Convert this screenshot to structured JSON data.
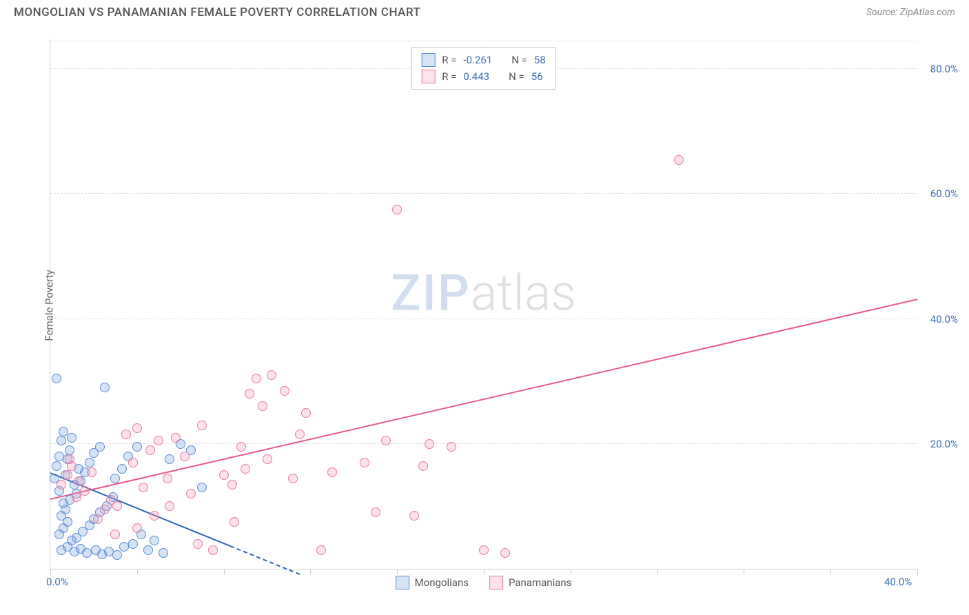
{
  "header": {
    "title": "MONGOLIAN VS PANAMANIAN FEMALE POVERTY CORRELATION CHART",
    "source": "Source: ZipAtlas.com"
  },
  "watermark": {
    "zip": "ZIP",
    "atlas": "atlas"
  },
  "chart": {
    "type": "scatter",
    "ylabel": "Female Poverty",
    "xlim": [
      0,
      40
    ],
    "ylim": [
      0,
      85
    ],
    "background_color": "#ffffff",
    "grid_color": "#dddddd",
    "axis_color": "#d0d0d0",
    "title_color": "#555555",
    "label_color": "#555555",
    "tick_label_color": "#3b6db5",
    "title_fontsize": 17,
    "label_fontsize": 15,
    "tick_fontsize": 15,
    "marker_radius": 7,
    "marker_stroke_width": 1.5,
    "marker_fill_opacity": 0.25,
    "yticks": [
      {
        "v": 20,
        "label": "20.0%"
      },
      {
        "v": 40,
        "label": "40.0%"
      },
      {
        "v": 60,
        "label": "60.0%"
      },
      {
        "v": 80,
        "label": "80.0%"
      }
    ],
    "xticks_major": [
      {
        "v": 0,
        "label": "0.0%"
      },
      {
        "v": 40,
        "label": "40.0%"
      }
    ],
    "xticks_minor": [
      4,
      8,
      12,
      16,
      20,
      24,
      28,
      32,
      36
    ],
    "ygrid": [
      20,
      40,
      60,
      80,
      84.5
    ],
    "series": [
      {
        "name": "Mongolians",
        "color_stroke": "#5b8fd6",
        "color_fill": "rgba(91,143,214,0.25)",
        "r_label": "R =",
        "r_value": "-0.261",
        "n_label": "N =",
        "n_value": "58",
        "trend": {
          "x1": 0,
          "y1": 15.2,
          "x2": 8.3,
          "y2": 3.5,
          "dash_x2": 11.5,
          "dash_y2": -1,
          "color": "#2b64b8"
        },
        "points": [
          [
            0.2,
            14.5
          ],
          [
            0.3,
            16.5
          ],
          [
            0.4,
            18.0
          ],
          [
            0.5,
            20.5
          ],
          [
            0.6,
            22.0
          ],
          [
            0.4,
            12.5
          ],
          [
            0.7,
            15.0
          ],
          [
            0.8,
            17.5
          ],
          [
            0.9,
            19.0
          ],
          [
            1.0,
            21.0
          ],
          [
            0.6,
            10.5
          ],
          [
            1.1,
            13.5
          ],
          [
            1.3,
            16.0
          ],
          [
            0.5,
            8.5
          ],
          [
            0.7,
            9.5
          ],
          [
            0.9,
            11.0
          ],
          [
            1.2,
            12.0
          ],
          [
            0.4,
            5.5
          ],
          [
            0.6,
            6.5
          ],
          [
            0.8,
            7.5
          ],
          [
            1.4,
            14.0
          ],
          [
            1.6,
            15.5
          ],
          [
            1.8,
            17.0
          ],
          [
            2.0,
            18.5
          ],
          [
            2.3,
            19.5
          ],
          [
            0.3,
            30.5
          ],
          [
            1.0,
            4.5
          ],
          [
            1.2,
            5.0
          ],
          [
            1.5,
            6.0
          ],
          [
            1.8,
            7.0
          ],
          [
            2.0,
            8.0
          ],
          [
            2.3,
            9.0
          ],
          [
            2.6,
            10.0
          ],
          [
            2.9,
            11.5
          ],
          [
            0.5,
            3.0
          ],
          [
            0.8,
            3.5
          ],
          [
            1.1,
            2.8
          ],
          [
            1.4,
            3.2
          ],
          [
            1.7,
            2.5
          ],
          [
            2.1,
            3.0
          ],
          [
            2.4,
            2.3
          ],
          [
            2.7,
            2.8
          ],
          [
            3.1,
            2.2
          ],
          [
            3.4,
            3.5
          ],
          [
            3.8,
            4.0
          ],
          [
            4.2,
            5.5
          ],
          [
            2.5,
            29.0
          ],
          [
            4.5,
            3.0
          ],
          [
            4.8,
            4.5
          ],
          [
            3.0,
            14.5
          ],
          [
            3.3,
            16.0
          ],
          [
            3.6,
            18.0
          ],
          [
            4.0,
            19.5
          ],
          [
            5.2,
            2.5
          ],
          [
            7.0,
            13.0
          ],
          [
            5.5,
            17.5
          ],
          [
            6.0,
            20.0
          ],
          [
            6.5,
            19.0
          ]
        ]
      },
      {
        "name": "Panamanians",
        "color_stroke": "#e97ca0",
        "color_fill": "rgba(244,160,190,0.3)",
        "r_label": "R =",
        "r_value": "0.443",
        "n_label": "N =",
        "n_value": "56",
        "trend": {
          "x1": 0,
          "y1": 11.0,
          "x2": 40,
          "y2": 43.0,
          "color": "#e85a8c"
        },
        "points": [
          [
            0.5,
            13.5
          ],
          [
            0.8,
            15.0
          ],
          [
            1.0,
            16.5
          ],
          [
            1.3,
            14.0
          ],
          [
            1.6,
            12.5
          ],
          [
            1.9,
            15.5
          ],
          [
            2.2,
            8.0
          ],
          [
            2.5,
            9.5
          ],
          [
            2.8,
            11.0
          ],
          [
            3.1,
            10.0
          ],
          [
            3.5,
            21.5
          ],
          [
            3.8,
            17.0
          ],
          [
            4.0,
            22.5
          ],
          [
            4.3,
            13.0
          ],
          [
            4.6,
            19.0
          ],
          [
            5.0,
            20.5
          ],
          [
            5.4,
            14.5
          ],
          [
            5.8,
            21.0
          ],
          [
            6.2,
            18.0
          ],
          [
            6.5,
            12.0
          ],
          [
            7.0,
            23.0
          ],
          [
            7.5,
            3.0
          ],
          [
            8.0,
            15.0
          ],
          [
            8.4,
            13.5
          ],
          [
            8.8,
            19.5
          ],
          [
            9.2,
            28.0
          ],
          [
            9.5,
            30.5
          ],
          [
            9.8,
            26.0
          ],
          [
            10.0,
            17.5
          ],
          [
            10.2,
            31.0
          ],
          [
            10.8,
            28.5
          ],
          [
            11.2,
            14.5
          ],
          [
            11.5,
            21.5
          ],
          [
            11.8,
            25.0
          ],
          [
            8.5,
            7.5
          ],
          [
            12.5,
            3.0
          ],
          [
            13.0,
            15.5
          ],
          [
            14.5,
            17.0
          ],
          [
            15.0,
            9.0
          ],
          [
            15.5,
            20.5
          ],
          [
            16.0,
            57.5
          ],
          [
            16.8,
            8.5
          ],
          [
            17.2,
            16.5
          ],
          [
            17.5,
            20.0
          ],
          [
            18.5,
            19.5
          ],
          [
            20.0,
            3.0
          ],
          [
            21.0,
            2.5
          ],
          [
            29.0,
            65.5
          ],
          [
            3.0,
            5.5
          ],
          [
            4.0,
            6.5
          ],
          [
            4.8,
            8.5
          ],
          [
            5.5,
            10.0
          ],
          [
            6.8,
            4.0
          ],
          [
            9.0,
            16.0
          ],
          [
            1.2,
            11.5
          ],
          [
            0.9,
            17.5
          ]
        ]
      }
    ],
    "legend_bottom": [
      {
        "swatch_fill": "rgba(91,143,214,0.25)",
        "swatch_stroke": "#5b8fd6",
        "label": "Mongolians"
      },
      {
        "swatch_fill": "rgba(244,160,190,0.3)",
        "swatch_stroke": "#e97ca0",
        "label": "Panamanians"
      }
    ]
  }
}
